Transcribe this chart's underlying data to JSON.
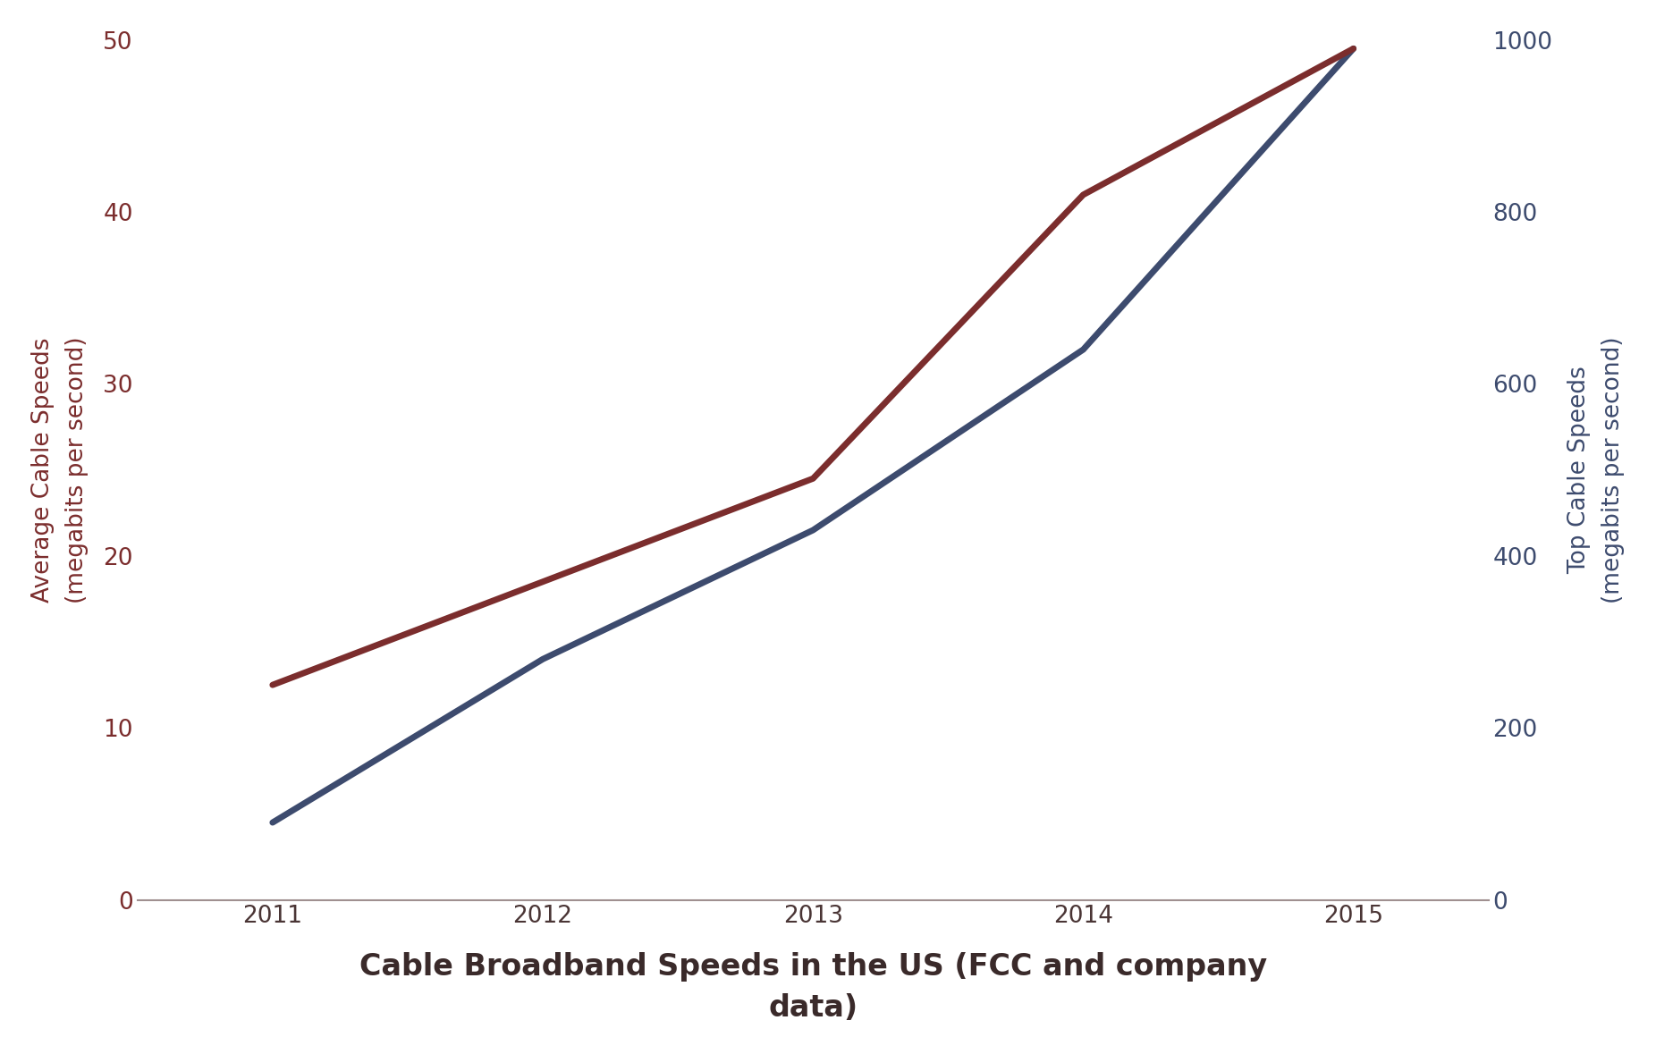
{
  "xlabel": "Cable Broadband Speeds in the US (FCC and company\ndata)",
  "ylabel_left": "Average Cable Speeds\n(megabits per second)",
  "ylabel_right": "Top Cable Speeds\n(megabits per second)",
  "years": [
    2011,
    2012,
    2013,
    2014,
    2015
  ],
  "avg_speeds": [
    4.5,
    14.0,
    21.5,
    32.0,
    49.5
  ],
  "top_speeds_right": [
    250,
    370,
    490,
    820,
    990
  ],
  "avg_color": "#3D4B6E",
  "top_color": "#7B2D2D",
  "ylim_left": [
    0,
    50
  ],
  "ylim_right": [
    0,
    1000
  ],
  "yticks_left": [
    0,
    10,
    20,
    30,
    40,
    50
  ],
  "yticks_right": [
    0,
    200,
    400,
    600,
    800,
    1000
  ],
  "xticks": [
    2011,
    2012,
    2013,
    2014,
    2015
  ],
  "background_color": "#FFFFFF",
  "spine_color": "#A09090",
  "tick_label_color_left": "#7B2D2D",
  "tick_label_color_right": "#3D4B6E",
  "x_tick_label_color": "#4A3535",
  "xlabel_color": "#3A2A2A",
  "line_width": 5,
  "xlabel_fontsize": 24,
  "ylabel_fontsize": 19,
  "tick_fontsize": 19,
  "xlim": [
    2010.5,
    2015.5
  ]
}
